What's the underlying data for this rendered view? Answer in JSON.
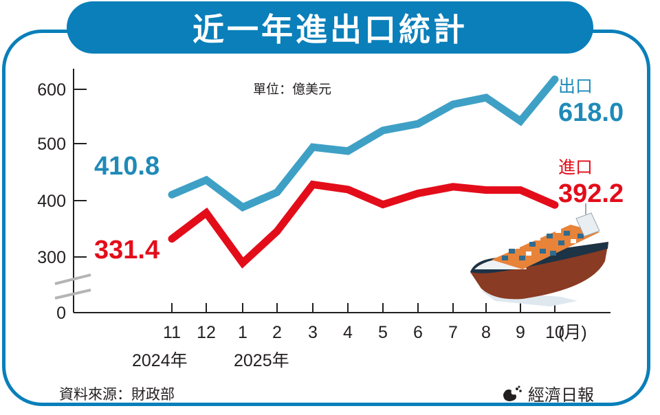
{
  "title": "近一年進出口統計",
  "unit_label": "單位：億美元",
  "source": "資料來源：財政部",
  "brand": "經濟日報",
  "colors": {
    "frame": "#0a7fba",
    "export": "#3fa0c6",
    "export_label": "#1f8ab8",
    "import": "#e30d1a"
  },
  "y_axis": {
    "ticks": [
      "600",
      "500",
      "400",
      "300",
      "0"
    ]
  },
  "x_axis": {
    "ticks": [
      "11",
      "12",
      "1",
      "2",
      "3",
      "4",
      "5",
      "6",
      "7",
      "8",
      "9",
      "10"
    ],
    "unit": "(月)",
    "years": [
      "2024年",
      "2025年"
    ]
  },
  "series_labels": {
    "export_name": "出口",
    "export_last": "618.0",
    "export_first": "410.8",
    "import_name": "進口",
    "import_last": "392.2",
    "import_first": "331.4"
  },
  "chart_data": {
    "type": "line",
    "title": "近一年進出口統計",
    "ylabel": "單位：億美元",
    "xlabel": "(月)",
    "categories": [
      "2024-11",
      "2024-12",
      "2025-1",
      "2025-2",
      "2025-3",
      "2025-4",
      "2025-5",
      "2025-6",
      "2025-7",
      "2025-8",
      "2025-9",
      "2025-10"
    ],
    "series": [
      {
        "name": "出口",
        "values": [
          410.8,
          437,
          388,
          415,
          496,
          489,
          526,
          538,
          573,
          585,
          543,
          618.0
        ]
      },
      {
        "name": "進口",
        "values": [
          331.4,
          378,
          288,
          345,
          429,
          420,
          393,
          413,
          425,
          419,
          419,
          392.2
        ]
      }
    ],
    "ylim": [
      0,
      640
    ],
    "axis_break": "between 0 and 300",
    "grid": false,
    "legend": "inline labels at line ends"
  }
}
